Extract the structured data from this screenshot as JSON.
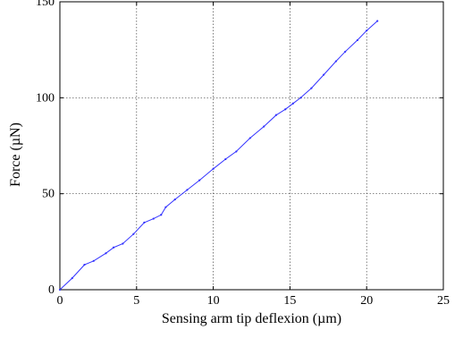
{
  "chart_data": {
    "type": "line",
    "title": "",
    "xlabel": "Sensing arm tip deflexion (µm)",
    "ylabel": "Force (µN)",
    "xlim": [
      0,
      25
    ],
    "ylim": [
      0,
      150
    ],
    "xticks": [
      "0",
      "5",
      "10",
      "15",
      "20",
      "25"
    ],
    "yticks": [
      "0",
      "50",
      "100",
      "150"
    ],
    "grid": true,
    "legend": "none",
    "series": [
      {
        "color": "#3333ff",
        "x": [
          0,
          0.8,
          1.6,
          2.2,
          3.0,
          3.5,
          4.1,
          4.8,
          5.5,
          6.1,
          6.6,
          6.9,
          7.5,
          8.3,
          9.1,
          10.0,
          10.8,
          11.5,
          12.4,
          13.3,
          14.1,
          14.7,
          15.2,
          15.7,
          16.4,
          17.2,
          18.0,
          18.6,
          19.4,
          20.0,
          20.7
        ],
        "y": [
          0,
          6,
          13,
          15,
          19,
          22,
          24,
          29,
          35,
          37,
          39,
          43,
          47,
          52,
          57,
          63,
          68,
          72,
          79,
          85,
          91,
          94,
          97,
          100,
          105,
          112,
          119,
          124,
          130,
          135,
          140
        ]
      }
    ]
  }
}
